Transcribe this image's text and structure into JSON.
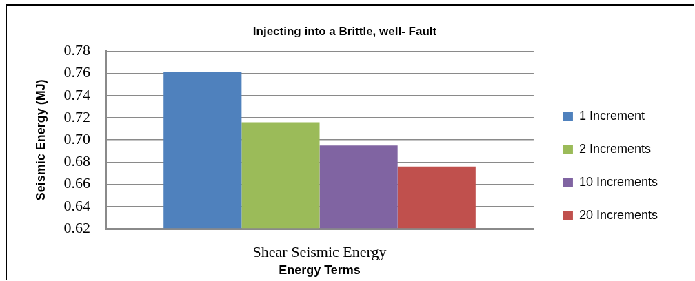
{
  "chart_data": {
    "type": "bar",
    "title": "Injecting into a Brittle, well- Fault",
    "xlabel": "Energy Terms",
    "ylabel": "Seismic Energy (MJ)",
    "categories": [
      "Shear Seismic Energy"
    ],
    "series": [
      {
        "name": "1 Increment",
        "color": "#4f81bd",
        "values": [
          0.761
        ]
      },
      {
        "name": "2 Increments",
        "color": "#9bbb59",
        "values": [
          0.716
        ]
      },
      {
        "name": "10 Increments",
        "color": "#8064a2",
        "values": [
          0.695
        ]
      },
      {
        "name": "20 Increments",
        "color": "#c0504d",
        "values": [
          0.676
        ]
      }
    ],
    "ylim": [
      0.62,
      0.78
    ],
    "yticks": [
      0.62,
      0.64,
      0.66,
      0.68,
      {
        "value": 0.7,
        "label": "0.70"
      },
      0.72,
      0.74,
      0.76,
      0.78
    ],
    "grid": "y",
    "legend": "right"
  }
}
